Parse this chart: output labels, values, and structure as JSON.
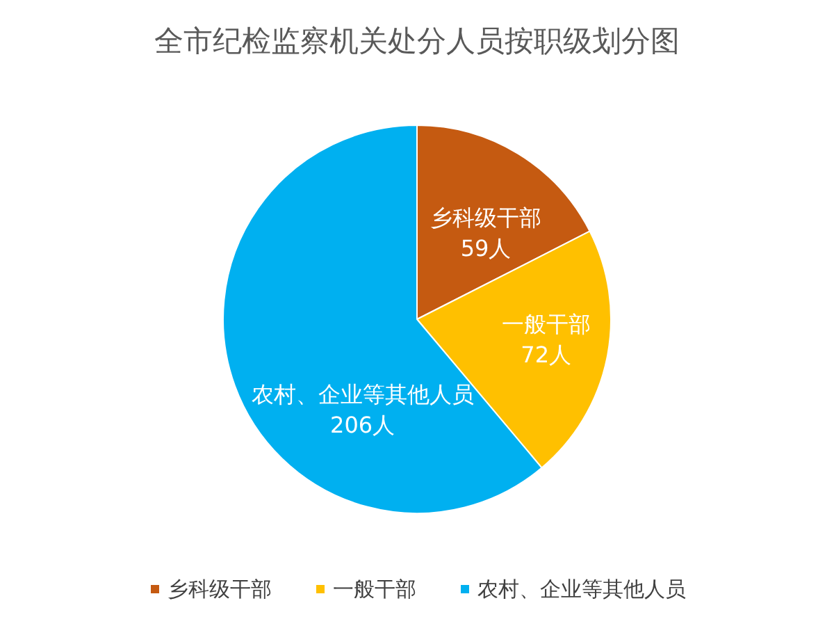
{
  "chart_data": {
    "type": "pie",
    "title": "全市纪检监察机关处分人员按职级划分图",
    "categories": [
      "乡科级干部",
      "一般干部",
      "农村、企业等其他人员"
    ],
    "values": [
      59,
      72,
      206
    ],
    "value_labels": [
      "59人",
      "72人",
      "206人"
    ],
    "colors": [
      "#c55a11",
      "#ffc000",
      "#00b0f0"
    ],
    "legend": "bottom"
  }
}
